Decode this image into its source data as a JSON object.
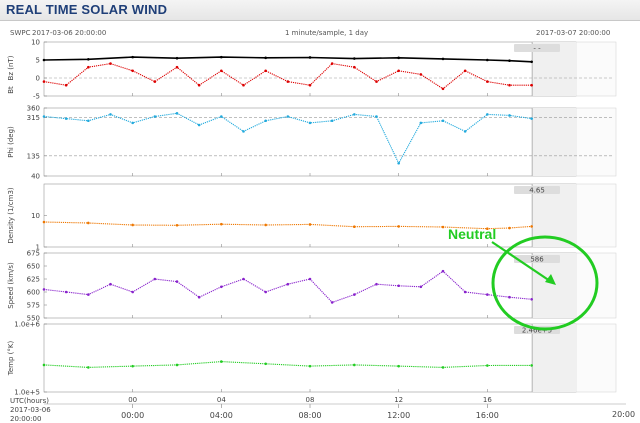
{
  "header": {
    "title": "REAL TIME SOLAR WIND"
  },
  "top_info": {
    "source": "SWPC",
    "start": "2017-03-06 20:00:00",
    "cadence": "1 minute/sample, 1 day",
    "end": "2017-03-07 20:00:00"
  },
  "bottom": {
    "axis_label": "UTC(hours)",
    "start_date": "2017-03-06",
    "start_time": "20:00:00",
    "end_time": "20:00"
  },
  "annotation": {
    "text": "Neutral",
    "color": "#22cc22"
  },
  "colors": {
    "bt": "#000000",
    "bz": "#dd0000",
    "phi": "#22aadd",
    "density": "#ee7700",
    "speed": "#8822cc",
    "temp": "#22cc22"
  },
  "chart_data": {
    "type": "scatter",
    "title": "REAL TIME SOLAR WIND",
    "x_ticks": [
      "00",
      "04",
      "08",
      "12",
      "16"
    ],
    "x_ticks_bottom": [
      "00:00",
      "04:00",
      "08:00",
      "12:00",
      "16:00"
    ],
    "x_range": [
      -4,
      20
    ],
    "cursor_time": "2017-03-07 18:01:00",
    "panels": [
      {
        "id": "mag",
        "ylabel": "Bt",
        "ylabel2": "Bz (nT)",
        "scale": "linear",
        "ylim": [
          -5,
          10
        ],
        "ticks": [
          "10",
          "5",
          "0",
          "-5"
        ],
        "dashed": [
          0
        ],
        "badge": "- -",
        "series": [
          {
            "key": "bt",
            "values": [
              [
                -4,
                5.0
              ],
              [
                -2,
                5.2
              ],
              [
                0,
                5.8
              ],
              [
                2,
                5.5
              ],
              [
                4,
                5.8
              ],
              [
                6,
                5.6
              ],
              [
                8,
                5.7
              ],
              [
                10,
                5.4
              ],
              [
                12,
                5.6
              ],
              [
                14,
                5.3
              ],
              [
                16,
                5.0
              ],
              [
                17,
                4.8
              ],
              [
                18,
                4.5
              ]
            ]
          },
          {
            "key": "bz",
            "values": [
              [
                -4,
                -1
              ],
              [
                -3,
                -2
              ],
              [
                -2,
                3
              ],
              [
                -1,
                4
              ],
              [
                0,
                2
              ],
              [
                1,
                -1
              ],
              [
                2,
                3
              ],
              [
                3,
                -2
              ],
              [
                4,
                2
              ],
              [
                5,
                -2
              ],
              [
                6,
                2
              ],
              [
                7,
                -1
              ],
              [
                8,
                -2
              ],
              [
                9,
                4
              ],
              [
                10,
                3
              ],
              [
                11,
                -1
              ],
              [
                12,
                2
              ],
              [
                13,
                1
              ],
              [
                14,
                -3
              ],
              [
                15,
                2
              ],
              [
                16,
                -1
              ],
              [
                17,
                -2
              ],
              [
                18,
                -2
              ]
            ]
          }
        ]
      },
      {
        "id": "phi",
        "ylabel": "Phi (deg)",
        "scale": "linear",
        "ylim": [
          40,
          360
        ],
        "ticks": [
          "360",
          "315",
          "135",
          "40"
        ],
        "dashed": [
          315,
          135
        ],
        "badge": "",
        "series": [
          {
            "key": "phi",
            "values": [
              [
                -4,
                320
              ],
              [
                -3,
                310
              ],
              [
                -2,
                300
              ],
              [
                -1,
                330
              ],
              [
                0,
                290
              ],
              [
                1,
                320
              ],
              [
                2,
                335
              ],
              [
                3,
                280
              ],
              [
                4,
                320
              ],
              [
                5,
                250
              ],
              [
                6,
                300
              ],
              [
                7,
                320
              ],
              [
                8,
                290
              ],
              [
                9,
                300
              ],
              [
                10,
                330
              ],
              [
                11,
                320
              ],
              [
                12,
                100
              ],
              [
                13,
                290
              ],
              [
                14,
                300
              ],
              [
                15,
                250
              ],
              [
                16,
                330
              ],
              [
                17,
                325
              ],
              [
                18,
                310
              ]
            ]
          }
        ]
      },
      {
        "id": "den",
        "ylabel": "Density (1/cm3)",
        "scale": "log",
        "ylim": [
          1,
          100
        ],
        "ticks": [
          "10",
          "1"
        ],
        "dashed": [],
        "badge": "4.65",
        "series": [
          {
            "key": "density",
            "values": [
              [
                -4,
                6.2
              ],
              [
                -2,
                5.8
              ],
              [
                0,
                5.0
              ],
              [
                2,
                4.9
              ],
              [
                4,
                5.3
              ],
              [
                6,
                5.0
              ],
              [
                8,
                5.2
              ],
              [
                10,
                4.4
              ],
              [
                12,
                4.5
              ],
              [
                14,
                4.3
              ],
              [
                16,
                3.8
              ],
              [
                17,
                4.0
              ],
              [
                18,
                4.5
              ]
            ]
          }
        ]
      },
      {
        "id": "spd",
        "ylabel": "Speed (km/s)",
        "scale": "linear",
        "ylim": [
          550,
          675
        ],
        "ticks": [
          "675",
          "650",
          "625",
          "600",
          "575",
          "550"
        ],
        "dashed": [],
        "badge": "586",
        "series": [
          {
            "key": "speed",
            "values": [
              [
                -4,
                605
              ],
              [
                -3,
                600
              ],
              [
                -2,
                595
              ],
              [
                -1,
                615
              ],
              [
                0,
                600
              ],
              [
                1,
                625
              ],
              [
                2,
                620
              ],
              [
                3,
                590
              ],
              [
                4,
                610
              ],
              [
                5,
                625
              ],
              [
                6,
                600
              ],
              [
                7,
                615
              ],
              [
                8,
                625
              ],
              [
                9,
                580
              ],
              [
                10,
                595
              ],
              [
                11,
                615
              ],
              [
                12,
                612
              ],
              [
                13,
                610
              ],
              [
                14,
                640
              ],
              [
                15,
                600
              ],
              [
                16,
                595
              ],
              [
                17,
                590
              ],
              [
                18,
                586
              ]
            ]
          }
        ]
      },
      {
        "id": "tmp",
        "ylabel": "Temp (°K)",
        "scale": "log",
        "ylim": [
          100000,
          1000000
        ],
        "ticks": [
          "1.0e+6",
          "1.0e+5"
        ],
        "dashed": [],
        "badge": "2.46e+5",
        "series": [
          {
            "key": "temp",
            "values": [
              [
                -4,
                250000
              ],
              [
                -2,
                230000
              ],
              [
                0,
                240000
              ],
              [
                2,
                250000
              ],
              [
                4,
                280000
              ],
              [
                6,
                260000
              ],
              [
                8,
                240000
              ],
              [
                10,
                250000
              ],
              [
                12,
                240000
              ],
              [
                14,
                230000
              ],
              [
                16,
                245000
              ],
              [
                18,
                246000
              ]
            ]
          }
        ]
      }
    ]
  }
}
